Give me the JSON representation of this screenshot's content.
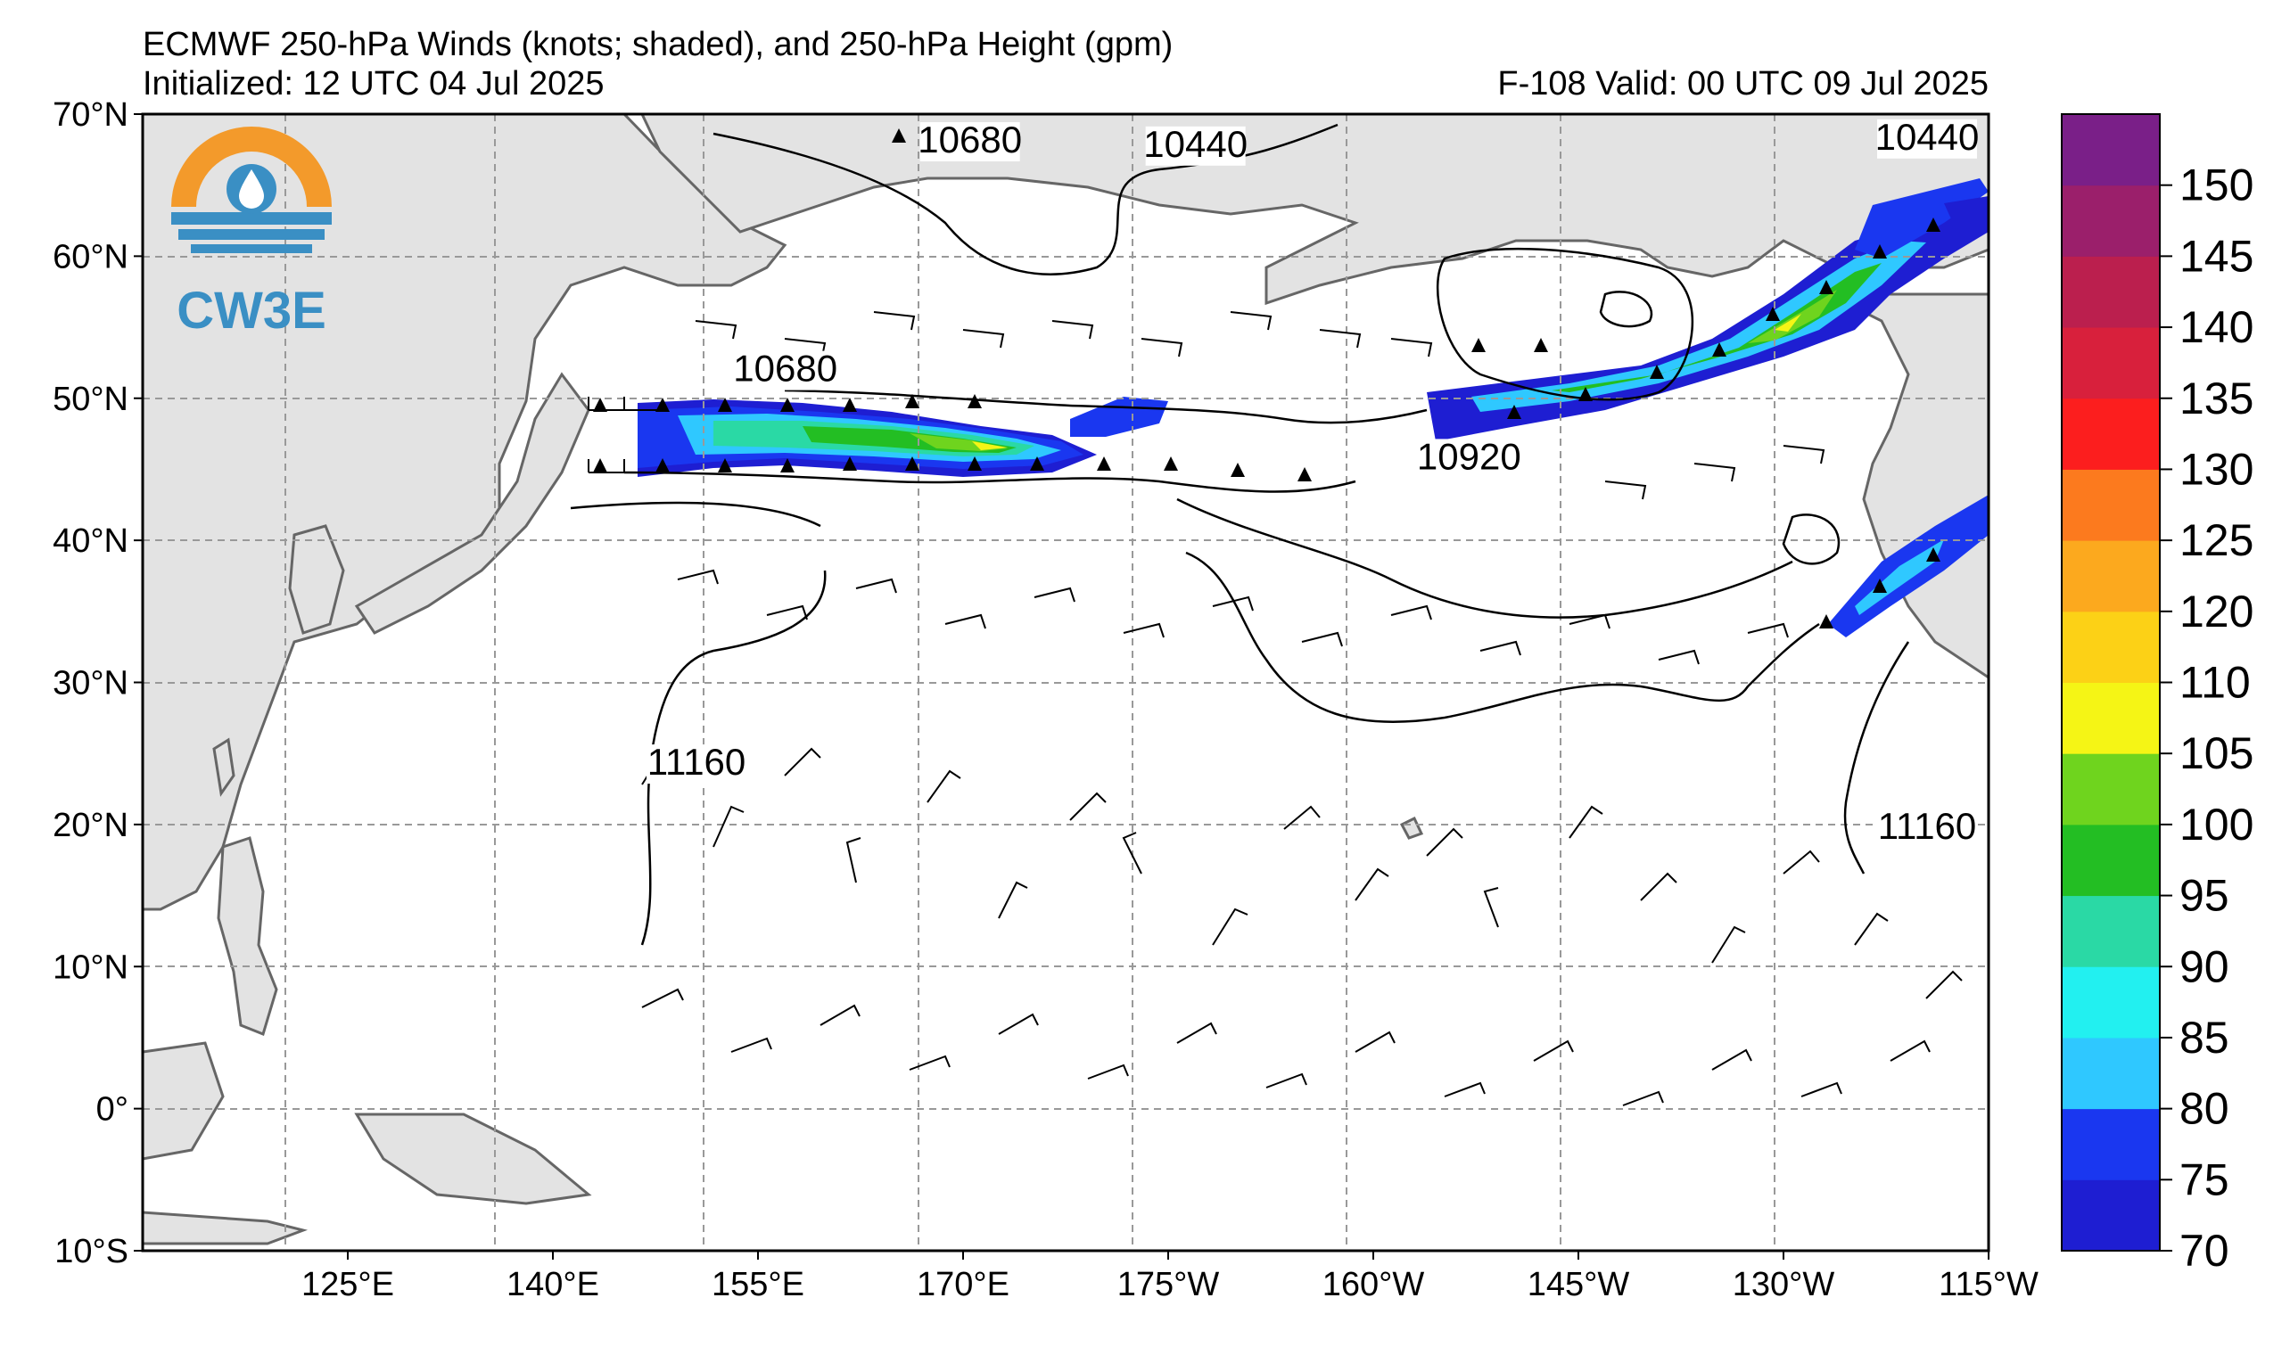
{
  "header": {
    "title": "ECMWF 250-hPa Winds (knots; shaded), and 250-hPa Height (gpm)",
    "initialized": "Initialized: 12 UTC 04 Jul 2025",
    "valid": "F-108  Valid: 00 UTC 09 Jul 2025"
  },
  "logo": {
    "text": "CW3E",
    "colors": {
      "orange": "#f39a2b",
      "blue": "#3a8fc4"
    }
  },
  "map": {
    "lat_range": [
      -10,
      70
    ],
    "lon_range": [
      110,
      245
    ],
    "lat_ticks": [
      "70°N",
      "60°N",
      "50°N",
      "40°N",
      "30°N",
      "20°N",
      "10°N",
      "0°",
      "10°S"
    ],
    "lon_ticks": [
      "125°E",
      "140°E",
      "155°E",
      "170°E",
      "175°W",
      "160°W",
      "145°W",
      "130°W",
      "115°W"
    ],
    "land_color": "#e3e3e3",
    "coast_color": "#666666",
    "grid": "dashed",
    "contour_labels": [
      {
        "text": "10680",
        "lon": 170.5,
        "lat": 67.3
      },
      {
        "text": "10440",
        "lon": 187.0,
        "lat": 67.0
      },
      {
        "text": "10440",
        "lon": 240.5,
        "lat": 67.5
      },
      {
        "text": "10680",
        "lon": 157.0,
        "lat": 51.2
      },
      {
        "text": "10920",
        "lon": 207.0,
        "lat": 45.0
      },
      {
        "text": "11160",
        "lon": 150.5,
        "lat": 23.5
      },
      {
        "text": "11160",
        "lon": 240.5,
        "lat": 19.0
      }
    ]
  },
  "colorbar": {
    "levels": [
      70,
      75,
      80,
      85,
      90,
      95,
      100,
      105,
      110,
      120,
      125,
      130,
      135,
      140,
      145,
      150
    ],
    "tick_labels": [
      "70",
      "75",
      "80",
      "85",
      "90",
      "95",
      "100",
      "105",
      "110",
      "120",
      "125",
      "130",
      "135",
      "140",
      "145",
      "150"
    ],
    "colors": [
      "#1e1ed2",
      "#1a37f0",
      "#2fc8ff",
      "#22f0f0",
      "#2ad9a5",
      "#23be23",
      "#6fd41e",
      "#f5f515",
      "#fcd116",
      "#fca91e",
      "#fc7a1e",
      "#fc1e1e",
      "#d8203c",
      "#bb1f4e",
      "#9b1f6b",
      "#7a1f88"
    ]
  }
}
